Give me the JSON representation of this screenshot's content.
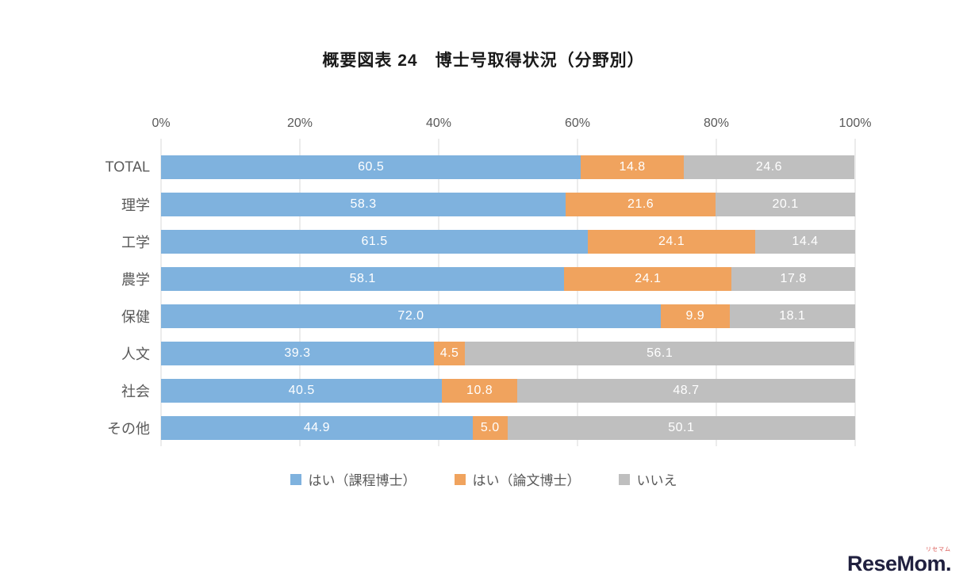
{
  "title": "概要図表 24　博士号取得状況（分野別）",
  "logo": {
    "text": "ReseMom.",
    "sub": "リセマム"
  },
  "chart_data": {
    "type": "bar",
    "orientation": "horizontal",
    "stacked": true,
    "stack_total": 100,
    "title": "概要図表 24　博士号取得状況（分野別）",
    "categories": [
      "TOTAL",
      "理学",
      "工学",
      "農学",
      "保健",
      "人文",
      "社会",
      "その他"
    ],
    "series": [
      {
        "name": "はい（課程博士）",
        "color": "#7fb2de",
        "values": [
          "60.5",
          "58.3",
          "61.5",
          "58.1",
          "72.0",
          "39.3",
          "40.5",
          "44.9"
        ]
      },
      {
        "name": "はい（論文博士）",
        "color": "#f0a35e",
        "values": [
          "14.8",
          "21.6",
          "24.1",
          "24.1",
          "9.9",
          "4.5",
          "10.8",
          "5.0"
        ]
      },
      {
        "name": "いいえ",
        "color": "#bfbfbf",
        "values": [
          "24.6",
          "20.1",
          "14.4",
          "17.8",
          "18.1",
          "56.1",
          "48.7",
          "50.1"
        ]
      }
    ],
    "x_ticks": [
      "0%",
      "20%",
      "40%",
      "60%",
      "80%",
      "100%"
    ],
    "xlim": [
      0,
      100
    ],
    "xlabel": "",
    "ylabel": "",
    "grid": true,
    "legend_position": "bottom",
    "value_labels": "inside-center-white"
  }
}
